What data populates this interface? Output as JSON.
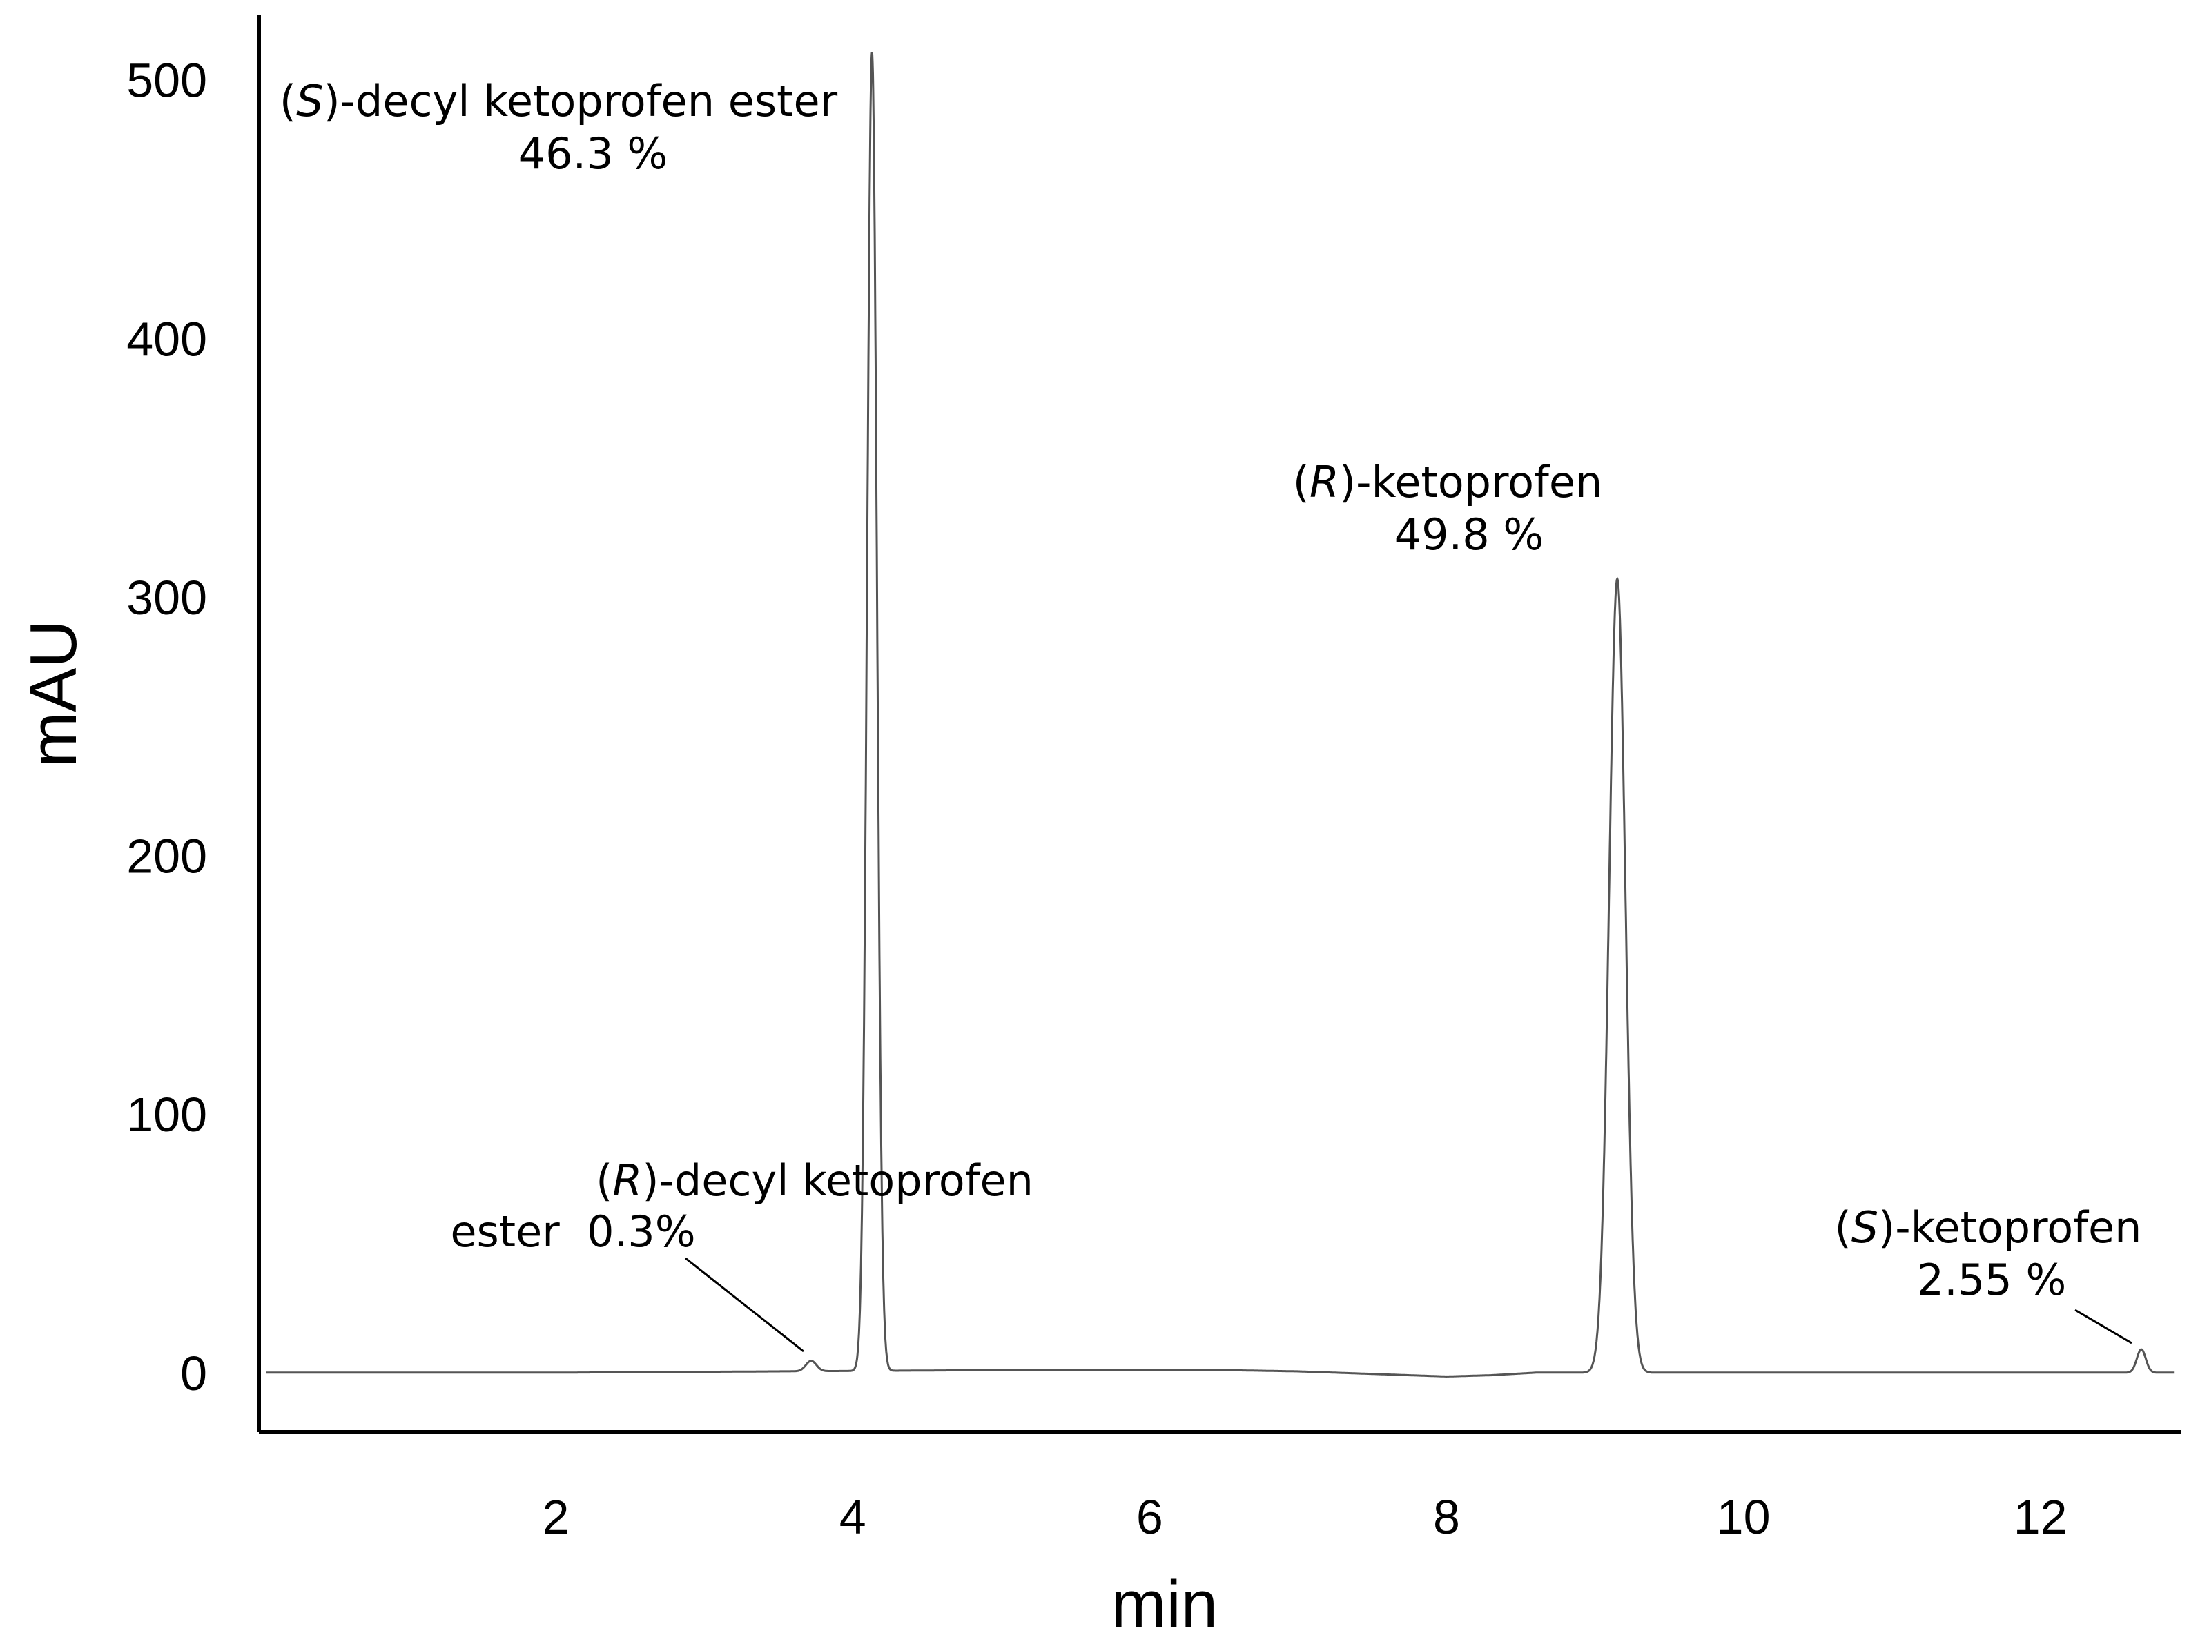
{
  "chart_data": {
    "type": "line",
    "title": "",
    "xlabel": "min",
    "ylabel": "mAU",
    "xlim": [
      0,
      12.95
    ],
    "ylim": [
      -23,
      525
    ],
    "x_ticks": [
      2,
      4,
      6,
      8,
      10,
      12
    ],
    "y_ticks": [
      0,
      100,
      200,
      300,
      400,
      500
    ],
    "x_tick_labels": [
      "2",
      "4",
      "6",
      "8",
      "10",
      "12"
    ],
    "y_tick_labels": [
      "0",
      "100",
      "200",
      "300",
      "400",
      "500"
    ],
    "grid": false,
    "legend": "none",
    "trace_color": "#555555",
    "baseline": [
      {
        "x": 0.05,
        "y": 0
      },
      {
        "x": 2.0,
        "y": 0
      },
      {
        "x": 3.5,
        "y": 0.5
      },
      {
        "x": 5.0,
        "y": 1
      },
      {
        "x": 6.5,
        "y": 1
      },
      {
        "x": 7.0,
        "y": 0.5
      },
      {
        "x": 7.5,
        "y": -0.5
      },
      {
        "x": 8.0,
        "y": -1.5
      },
      {
        "x": 8.3,
        "y": -1
      },
      {
        "x": 8.6,
        "y": 0
      },
      {
        "x": 10.0,
        "y": 0
      },
      {
        "x": 11.5,
        "y": 0
      },
      {
        "x": 12.9,
        "y": 0
      }
    ],
    "peaks": [
      {
        "label_prefix": "(",
        "label_italic": "R",
        "label_line1": ")-decyl ketoprofen",
        "label_line2": "ester  0.3%",
        "retention_min": 3.72,
        "height_mAU": 4,
        "width_min": 0.035,
        "area_percent": "0.3%"
      },
      {
        "label_prefix": "(",
        "label_italic": "S",
        "label_line1": ")-decyl ketoprofen ester",
        "label_line2": "46.3 %",
        "retention_min": 4.13,
        "height_mAU": 510,
        "width_min": 0.033,
        "area_percent": "46.3 %"
      },
      {
        "label_prefix": "(",
        "label_italic": "R",
        "label_line1": ")-ketoprofen",
        "label_line2": "49.8 %",
        "retention_min": 9.15,
        "height_mAU": 307,
        "width_min": 0.055,
        "area_percent": "49.8 %"
      },
      {
        "label_prefix": "(",
        "label_italic": "S",
        "label_line1": ")-ketoprofen",
        "label_line2": "2.55 %",
        "retention_min": 12.68,
        "height_mAU": 9,
        "width_min": 0.03,
        "area_percent": "2.55 %"
      }
    ]
  }
}
